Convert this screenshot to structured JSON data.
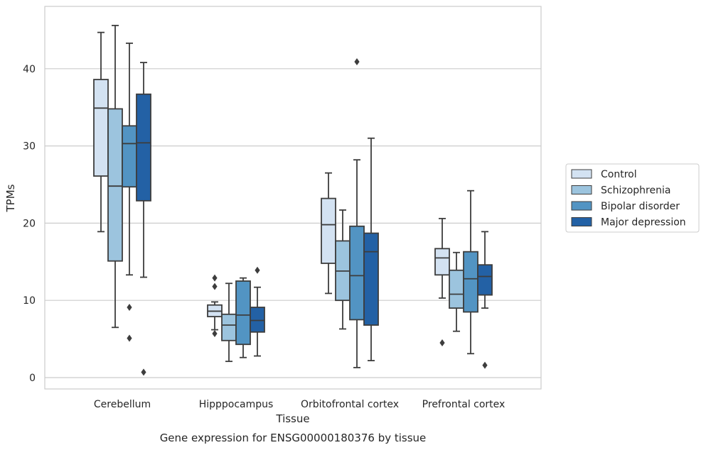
{
  "chart_data": {
    "type": "box",
    "ylabel": "TPMs",
    "xlabel": "Tissue",
    "caption": "Gene expression for ENSG00000180376 by tissue",
    "ylim": [
      -1.5,
      48.5
    ],
    "yticks": [
      0,
      10,
      20,
      30,
      40
    ],
    "grid": "horizontal",
    "legend_position": "right",
    "categories": [
      "Cerebellum",
      "Hipppocampus",
      "Orbitofrontal cortex",
      "Prefrontal cortex"
    ],
    "series": [
      {
        "name": "Control",
        "color": "#d3e2f2",
        "boxes": [
          {
            "whislo": 18.9,
            "q1": 26.1,
            "med": 34.9,
            "q3": 38.6,
            "whishi": 44.7,
            "fliers": []
          },
          {
            "whislo": 6.2,
            "q1": 7.9,
            "med": 8.6,
            "q3": 9.4,
            "whishi": 9.8,
            "fliers": [
              12.9,
              11.8,
              5.7
            ]
          },
          {
            "whislo": 10.9,
            "q1": 14.8,
            "med": 19.8,
            "q3": 23.2,
            "whishi": 26.5,
            "fliers": []
          },
          {
            "whislo": 10.3,
            "q1": 13.3,
            "med": 15.5,
            "q3": 16.7,
            "whishi": 20.6,
            "fliers": [
              4.5
            ]
          }
        ]
      },
      {
        "name": "Schizophrenia",
        "color": "#9cc4de",
        "boxes": [
          {
            "whislo": 6.5,
            "q1": 15.1,
            "med": 24.8,
            "q3": 34.8,
            "whishi": 45.6,
            "fliers": []
          },
          {
            "whislo": 2.1,
            "q1": 4.8,
            "med": 6.8,
            "q3": 8.2,
            "whishi": 12.2,
            "fliers": []
          },
          {
            "whislo": 6.3,
            "q1": 10.0,
            "med": 13.8,
            "q3": 17.7,
            "whishi": 21.7,
            "fliers": []
          },
          {
            "whislo": 6.0,
            "q1": 9.0,
            "med": 10.8,
            "q3": 13.9,
            "whishi": 16.2,
            "fliers": []
          }
        ]
      },
      {
        "name": "Bipolar disorder",
        "color": "#5294c3",
        "boxes": [
          {
            "whislo": 13.3,
            "q1": 24.7,
            "med": 30.3,
            "q3": 32.6,
            "whishi": 43.3,
            "fliers": [
              9.1,
              5.1
            ]
          },
          {
            "whislo": 2.6,
            "q1": 4.3,
            "med": 8.1,
            "q3": 12.5,
            "whishi": 12.9,
            "fliers": []
          },
          {
            "whislo": 1.3,
            "q1": 7.5,
            "med": 13.2,
            "q3": 19.6,
            "whishi": 28.2,
            "fliers": [
              40.9
            ]
          },
          {
            "whislo": 3.1,
            "q1": 8.5,
            "med": 12.8,
            "q3": 16.3,
            "whishi": 24.2,
            "fliers": []
          }
        ]
      },
      {
        "name": "Major depression",
        "color": "#2361a5",
        "boxes": [
          {
            "whislo": 13.0,
            "q1": 22.9,
            "med": 30.4,
            "q3": 36.7,
            "whishi": 40.8,
            "fliers": [
              0.7
            ]
          },
          {
            "whislo": 2.8,
            "q1": 5.9,
            "med": 7.4,
            "q3": 9.1,
            "whishi": 11.7,
            "fliers": [
              13.9
            ]
          },
          {
            "whislo": 2.2,
            "q1": 6.8,
            "med": 16.3,
            "q3": 18.7,
            "whishi": 31.0,
            "fliers": []
          },
          {
            "whislo": 9.0,
            "q1": 10.7,
            "med": 13.1,
            "q3": 14.6,
            "whishi": 18.9,
            "fliers": [
              1.6
            ]
          }
        ]
      }
    ]
  }
}
